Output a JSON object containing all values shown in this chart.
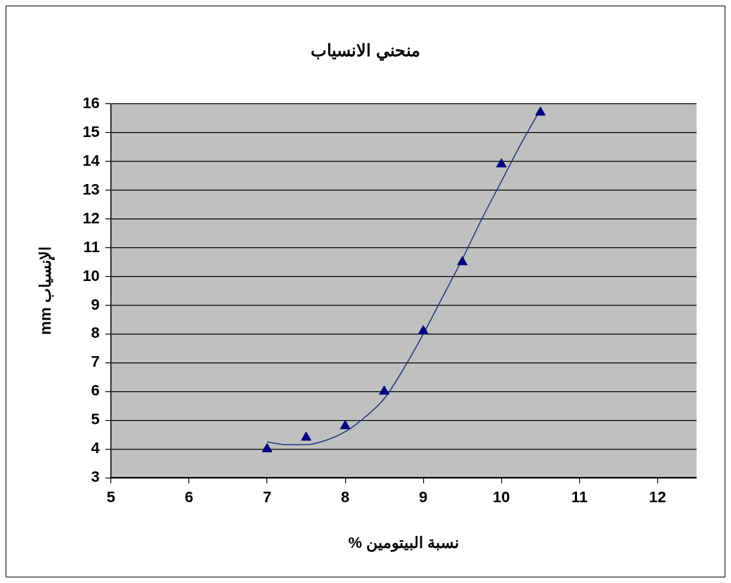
{
  "chart_data": {
    "type": "scatter",
    "title": "منحني الانسياب",
    "xlabel": "% نسبة البيتومين",
    "ylabel": "mm الإنسياب",
    "xlim": [
      5,
      12.5
    ],
    "xticks": [
      5,
      6,
      7,
      8,
      9,
      10,
      11,
      12
    ],
    "ylim": [
      3,
      16
    ],
    "yticks": [
      3,
      4,
      5,
      6,
      7,
      8,
      9,
      10,
      11,
      12,
      13,
      14,
      15,
      16
    ],
    "grid": "y",
    "legend": false,
    "marker": "triangle",
    "series": [
      {
        "type": "scatter",
        "color": "#000080",
        "x": [
          7,
          7.5,
          8,
          8.5,
          9,
          9.5,
          10,
          10.5
        ],
        "values": [
          4.0,
          4.4,
          4.8,
          6.0,
          8.1,
          10.5,
          13.9,
          15.7
        ]
      },
      {
        "type": "line",
        "marker": "none",
        "color": "#1f3a7a",
        "x": [
          7,
          7.25,
          7.5,
          7.75,
          8,
          8.25,
          8.5,
          8.75,
          9,
          9.25,
          9.5,
          9.75,
          10,
          10.25,
          10.5
        ],
        "values": [
          4.25,
          4.15,
          4.15,
          4.3,
          4.6,
          5.1,
          5.75,
          6.8,
          8.0,
          9.3,
          10.6,
          12.0,
          13.3,
          14.6,
          15.8
        ]
      }
    ]
  }
}
